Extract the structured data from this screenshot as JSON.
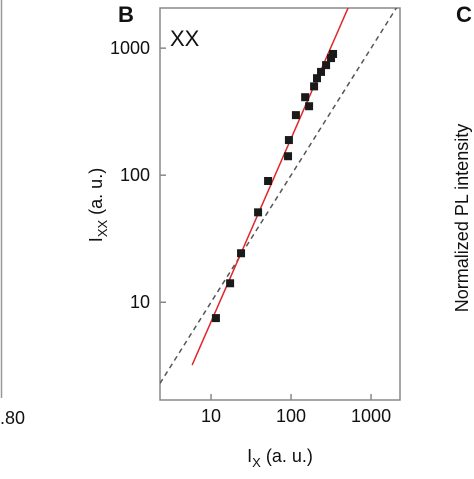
{
  "chart_data": {
    "type": "scatter",
    "panel_label": "B",
    "annotation": "XX",
    "next_panel_label": "C",
    "next_panel_ylabel": "Normalized PL intensity",
    "prev_panel_tick": ".80",
    "xlabel": {
      "main": "I",
      "sub": "X",
      "rest": " (a. u.)"
    },
    "ylabel": {
      "main": "I",
      "sub": "XX",
      "rest": " (a. u.)"
    },
    "xscale": "log",
    "yscale": "log",
    "xlim": [
      2.3,
      2300
    ],
    "ylim": [
      1.7,
      2070
    ],
    "xticks": [
      10,
      100,
      1000
    ],
    "yticks": [
      10,
      100,
      1000
    ],
    "series": [
      {
        "type": "scatter",
        "color": "#1a1a1a",
        "x": [
          11.5,
          17.3,
          23.7,
          38.7,
          51.6,
          91.7,
          94,
          115,
          150,
          168,
          194,
          211,
          237,
          274,
          316,
          335
        ],
        "values": [
          7.5,
          14.1,
          24.3,
          51,
          90,
          141,
          189,
          297,
          411,
          349,
          500,
          580,
          650,
          735,
          835,
          900
        ]
      },
      {
        "type": "line",
        "color": "#e0262a",
        "dash": false,
        "x": [
          5.8,
          516
        ],
        "values": [
          3.2,
          2070
        ]
      },
      {
        "type": "line",
        "color": "#555555",
        "dash": true,
        "x": [
          2.3,
          2300
        ],
        "values": [
          2.3,
          2300
        ]
      }
    ]
  }
}
